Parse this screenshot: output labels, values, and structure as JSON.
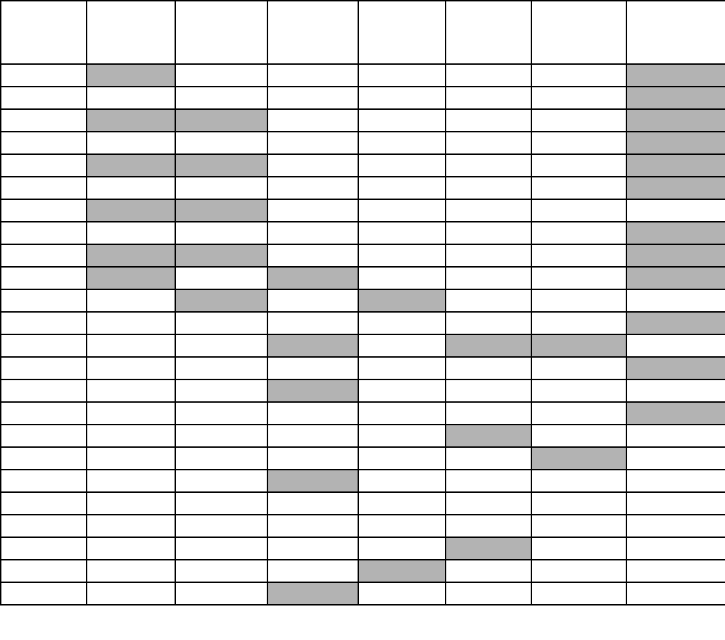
{
  "colors": {
    "filled": "#b3b3b3",
    "empty": "#ffffff",
    "border": "#000000"
  },
  "table": {
    "columns": 8,
    "header": [
      "",
      "",
      "",
      "",
      "",
      "",
      "",
      ""
    ],
    "filled_cells_by_row": [
      [
        1,
        7
      ],
      [
        7
      ],
      [
        1,
        2,
        7
      ],
      [
        7
      ],
      [
        1,
        2,
        7
      ],
      [
        7
      ],
      [
        1,
        2
      ],
      [
        7
      ],
      [
        1,
        2,
        7
      ],
      [
        1,
        3,
        7
      ],
      [
        2,
        4
      ],
      [
        7
      ],
      [
        3,
        5,
        6
      ],
      [
        7
      ],
      [
        3
      ],
      [
        7
      ],
      [
        5
      ],
      [
        6
      ],
      [
        3
      ],
      [],
      [],
      [
        5
      ],
      [
        4
      ],
      [
        3
      ]
    ]
  }
}
